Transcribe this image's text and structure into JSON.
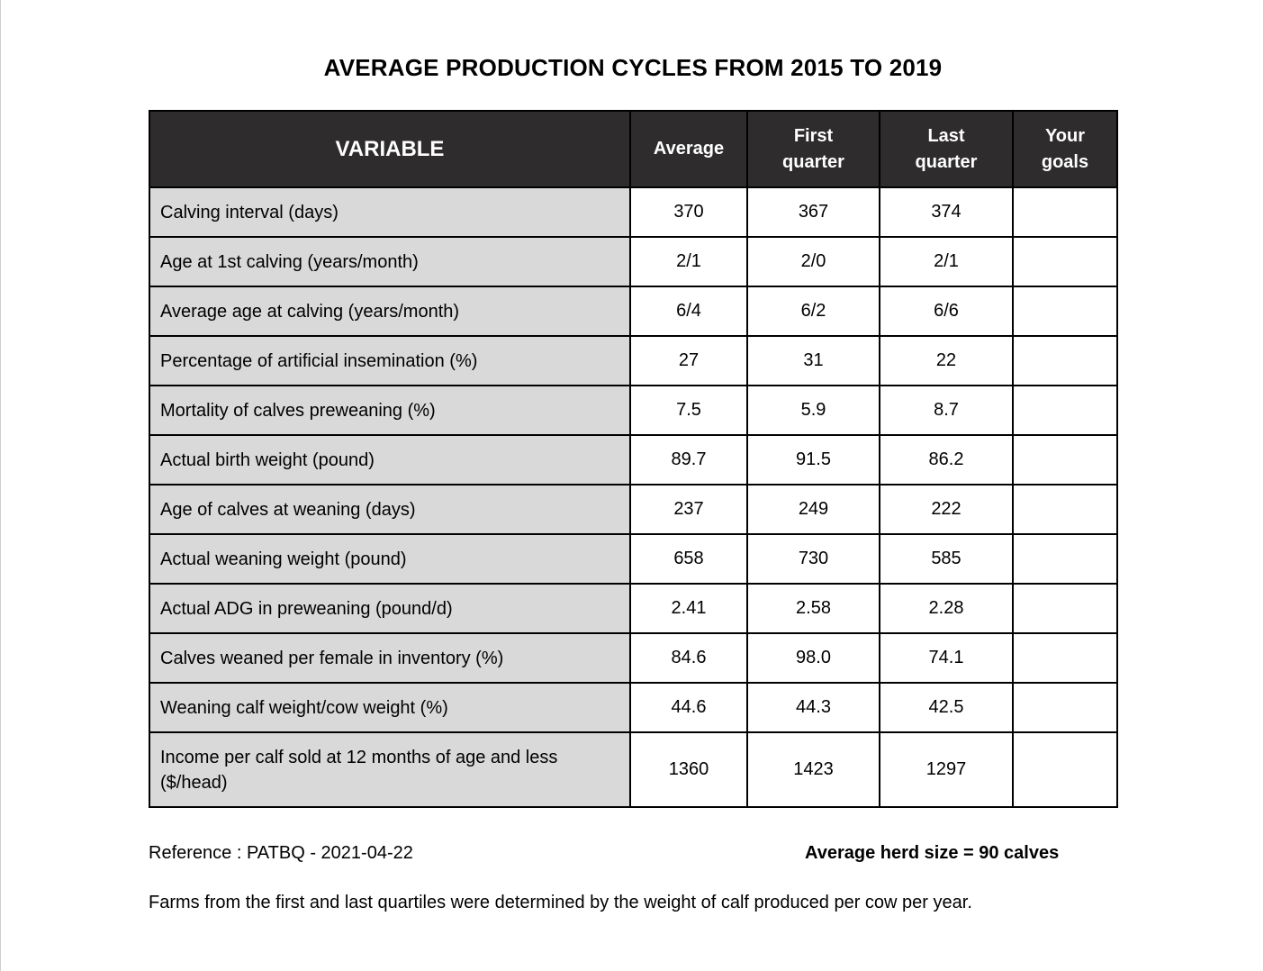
{
  "title": "AVERAGE PRODUCTION CYCLES FROM 2015 TO 2019",
  "table": {
    "headers": {
      "variable": "VARIABLE",
      "average": "Average",
      "first_quarter_line1": "First",
      "first_quarter_line2": "quarter",
      "last_quarter_line1": "Last",
      "last_quarter_line2": "quarter",
      "your_goals_line1": "Your",
      "your_goals_line2": "goals"
    },
    "rows": [
      {
        "variable": "Calving interval (days)",
        "average": "370",
        "first": "367",
        "last": "374",
        "goals": ""
      },
      {
        "variable": "Age at 1st calving (years/month)",
        "average": "2/1",
        "first": "2/0",
        "last": "2/1",
        "goals": ""
      },
      {
        "variable": "Average age at calving (years/month)",
        "average": "6/4",
        "first": "6/2",
        "last": "6/6",
        "goals": ""
      },
      {
        "variable": "Percentage of artificial insemination (%)",
        "average": "27",
        "first": "31",
        "last": "22",
        "goals": ""
      },
      {
        "variable": "Mortality of calves preweaning (%)",
        "average": "7.5",
        "first": "5.9",
        "last": "8.7",
        "goals": ""
      },
      {
        "variable": "Actual birth weight (pound)",
        "average": "89.7",
        "first": "91.5",
        "last": "86.2",
        "goals": ""
      },
      {
        "variable": "Age of calves at weaning (days)",
        "average": "237",
        "first": "249",
        "last": "222",
        "goals": ""
      },
      {
        "variable": "Actual weaning weight (pound)",
        "average": "658",
        "first": "730",
        "last": "585",
        "goals": ""
      },
      {
        "variable": "Actual ADG in preweaning (pound/d)",
        "average": "2.41",
        "first": "2.58",
        "last": "2.28",
        "goals": ""
      },
      {
        "variable": "Calves weaned per female in inventory (%)",
        "average": "84.6",
        "first": "98.0",
        "last": "74.1",
        "goals": ""
      },
      {
        "variable": "Weaning calf weight/cow weight (%)",
        "average": "44.6",
        "first": "44.3",
        "last": "42.5",
        "goals": ""
      },
      {
        "variable": "Income per calf sold at 12 months of age and less ($/head)",
        "average": "1360",
        "first": "1423",
        "last": "1297",
        "goals": ""
      }
    ]
  },
  "reference": "Reference : PATBQ - 2021-04-22",
  "herd_size": "Average herd size = 90 calves",
  "footnote": "Farms from the first and last quartiles were determined by the weight of calf produced per cow per year."
}
